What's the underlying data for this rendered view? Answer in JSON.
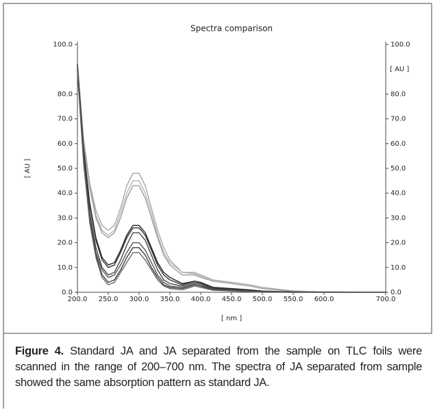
{
  "chart_data": {
    "type": "line",
    "title": "Spectra comparison",
    "xlabel": "[ nm ]",
    "ylabel": "[ AU ]",
    "y2label": "[ AU ]",
    "x": [
      200,
      210,
      220,
      230,
      240,
      250,
      260,
      270,
      280,
      290,
      300,
      310,
      320,
      330,
      340,
      350,
      370,
      390,
      400,
      420,
      450,
      480,
      500,
      550,
      600,
      700
    ],
    "xlim": [
      200,
      700
    ],
    "xticks": [
      {
        "value": 200,
        "label": "200.0"
      },
      {
        "value": 250,
        "label": "250.0"
      },
      {
        "value": 300,
        "label": "300.0"
      },
      {
        "value": 350,
        "label": "350.0"
      },
      {
        "value": 400,
        "label": "400.0"
      },
      {
        "value": 450,
        "label": "450.0"
      },
      {
        "value": 500,
        "label": "500.0"
      },
      {
        "value": 550,
        "label": "550.0"
      },
      {
        "value": 600,
        "label": "600.0"
      },
      {
        "value": 700,
        "label": "700.0"
      }
    ],
    "ylim": [
      0,
      100
    ],
    "yticks": [
      {
        "value": 0,
        "label": "0.0"
      },
      {
        "value": 10,
        "label": "10.0"
      },
      {
        "value": 20,
        "label": "20.0"
      },
      {
        "value": 30,
        "label": "30.0"
      },
      {
        "value": 40,
        "label": "40.0"
      },
      {
        "value": 50,
        "label": "50.0"
      },
      {
        "value": 60,
        "label": "60.0"
      },
      {
        "value": 70,
        "label": "70.0"
      },
      {
        "value": 80,
        "label": "80.0"
      },
      {
        "value": 100,
        "label": "100.0"
      }
    ],
    "y2lim": [
      0,
      100
    ],
    "y2ticks": [
      {
        "value": 0,
        "label": "0.0"
      },
      {
        "value": 10,
        "label": "10.0"
      },
      {
        "value": 20,
        "label": "20.0"
      },
      {
        "value": 30,
        "label": "30.0"
      },
      {
        "value": 40,
        "label": "40.0"
      },
      {
        "value": 50,
        "label": "50.0"
      },
      {
        "value": 60,
        "label": "60.0"
      },
      {
        "value": 70,
        "label": "70.0"
      },
      {
        "value": 80,
        "label": "80.0"
      },
      {
        "value": 100,
        "label": "100.0"
      }
    ],
    "series": [
      {
        "color": "#a8a8a8",
        "values": [
          92,
          62,
          44,
          33,
          27,
          25,
          27,
          34,
          43,
          48,
          48,
          43,
          34,
          25,
          18,
          13,
          8,
          8,
          7,
          5,
          4,
          3,
          2,
          0.5,
          0.2,
          0
        ]
      },
      {
        "color": "#b4b4b4",
        "values": [
          92,
          61,
          43,
          31,
          25,
          23,
          25,
          32,
          40,
          45,
          45,
          40,
          32,
          23,
          16,
          12,
          8,
          7.5,
          6.5,
          5,
          4,
          3,
          2,
          0.5,
          0.2,
          0
        ]
      },
      {
        "color": "#9c9c9c",
        "values": [
          92,
          60,
          42,
          30,
          24,
          22,
          24,
          30,
          38,
          43,
          43,
          38,
          30,
          22,
          15,
          11,
          7,
          7,
          6,
          4.5,
          3.5,
          2.5,
          1.5,
          0.4,
          0.1,
          0
        ]
      },
      {
        "color": "#222222",
        "values": [
          92,
          58,
          36,
          22,
          14,
          11,
          12,
          17,
          23,
          27,
          27,
          24,
          18,
          12,
          8,
          6,
          3.5,
          4.5,
          4,
          2,
          1.5,
          1,
          0.5,
          0.2,
          0,
          0
        ]
      },
      {
        "color": "#333333",
        "values": [
          92,
          57,
          35,
          21,
          13,
          10,
          11,
          16,
          22,
          26,
          26,
          23,
          17,
          11,
          7,
          5,
          3,
          4.5,
          3.8,
          1.8,
          1.2,
          0.8,
          0.4,
          0.1,
          0,
          0
        ]
      },
      {
        "color": "#444444",
        "values": [
          91,
          55,
          32,
          18,
          10,
          7,
          8,
          13,
          19,
          24,
          24,
          21,
          15,
          9,
          5,
          3.5,
          2.5,
          4,
          3.5,
          1.5,
          1,
          0.6,
          0.3,
          0.1,
          0,
          0
        ]
      },
      {
        "color": "#555555",
        "values": [
          90,
          54,
          30,
          16,
          9,
          6,
          7,
          11,
          16,
          20,
          20,
          17,
          12,
          7,
          4,
          2.5,
          2,
          3.5,
          3,
          1.2,
          0.8,
          0.5,
          0.2,
          0,
          0,
          0
        ]
      },
      {
        "color": "#3a3a3a",
        "values": [
          90,
          53,
          29,
          15,
          7,
          4,
          5,
          9,
          14,
          18,
          18,
          15,
          10,
          6,
          3,
          2,
          1.5,
          3,
          2.5,
          1,
          0.6,
          0.3,
          0.1,
          0,
          0,
          0
        ]
      },
      {
        "color": "#666666",
        "values": [
          89,
          52,
          28,
          14,
          6,
          3,
          4,
          8,
          12,
          16,
          16,
          13,
          9,
          5,
          2.5,
          1.5,
          1,
          2.5,
          2,
          0.8,
          0.5,
          0.2,
          0,
          0,
          0,
          0
        ]
      }
    ]
  },
  "caption": {
    "label": "Figure 4.",
    "text": " Standard JA and JA separated from the sample on TLC foils were scanned in the range of 200–700 nm. The spectra of JA separated from sample showed the same absorption pattern as standard JA."
  }
}
